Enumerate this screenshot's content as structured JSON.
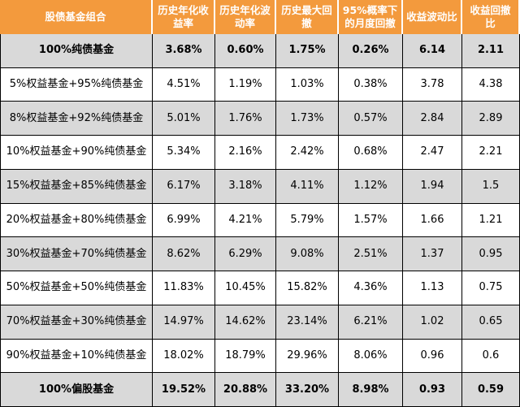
{
  "header": [
    "股债基金组合",
    "历史年化收益率",
    "历史年化波动率",
    "历史最大回撤",
    "95%概率下的月度回撤",
    "收益波动比",
    "收益回撤比"
  ],
  "rows": [
    {
      "cells": [
        "100%纯债基金",
        "3.68%",
        "0.60%",
        "1.75%",
        "0.26%",
        "6.14",
        "2.11"
      ],
      "style": "gray-bold"
    },
    {
      "cells": [
        "5%权益基金+95%纯债基金",
        "4.51%",
        "1.19%",
        "1.03%",
        "0.38%",
        "3.78",
        "4.38"
      ],
      "style": "white"
    },
    {
      "cells": [
        "8%权益基金+92%纯债基金",
        "5.01%",
        "1.76%",
        "1.73%",
        "0.57%",
        "2.84",
        "2.89"
      ],
      "style": "gray"
    },
    {
      "cells": [
        "10%权益基金+90%纯债基金",
        "5.34%",
        "2.16%",
        "2.42%",
        "0.68%",
        "2.47",
        "2.21"
      ],
      "style": "white"
    },
    {
      "cells": [
        "15%权益基金+85%纯债基金",
        "6.17%",
        "3.18%",
        "4.11%",
        "1.12%",
        "1.94",
        "1.5"
      ],
      "style": "gray"
    },
    {
      "cells": [
        "20%权益基金+80%纯债基金",
        "6.99%",
        "4.21%",
        "5.79%",
        "1.57%",
        "1.66",
        "1.21"
      ],
      "style": "white"
    },
    {
      "cells": [
        "30%权益基金+70%纯债基金",
        "8.62%",
        "6.29%",
        "9.08%",
        "2.51%",
        "1.37",
        "0.95"
      ],
      "style": "gray"
    },
    {
      "cells": [
        "50%权益基金+50%纯债基金",
        "11.83%",
        "10.45%",
        "15.82%",
        "4.36%",
        "1.13",
        "0.75"
      ],
      "style": "white"
    },
    {
      "cells": [
        "70%权益基金+30%纯债基金",
        "14.97%",
        "14.62%",
        "23.14%",
        "6.21%",
        "1.02",
        "0.65"
      ],
      "style": "gray"
    },
    {
      "cells": [
        "90%权益基金+10%纯债基金",
        "18.02%",
        "18.79%",
        "29.96%",
        "8.06%",
        "0.96",
        "0.6"
      ],
      "style": "white"
    },
    {
      "cells": [
        "100%偏股基金",
        "19.52%",
        "20.88%",
        "33.20%",
        "8.98%",
        "0.93",
        "0.59"
      ],
      "style": "gray-bold"
    }
  ]
}
